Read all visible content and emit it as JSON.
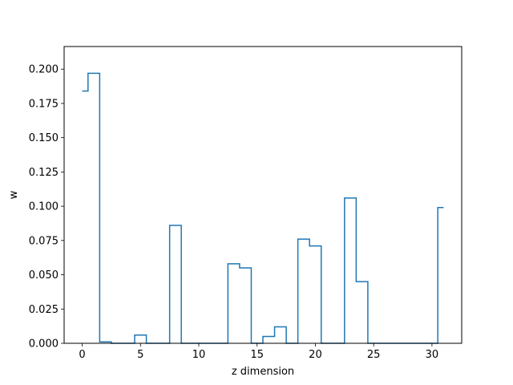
{
  "chart_data": {
    "type": "line",
    "style": "step-mid",
    "title": "",
    "xlabel": "z dimension",
    "ylabel": "w",
    "xlim": [
      -1.55,
      32.55
    ],
    "ylim": [
      0,
      0.2165
    ],
    "xticks": [
      0,
      5,
      10,
      15,
      20,
      25,
      30
    ],
    "xtick_labels": [
      "0",
      "5",
      "10",
      "15",
      "20",
      "25",
      "30"
    ],
    "yticks": [
      0.0,
      0.025,
      0.05,
      0.075,
      0.1,
      0.125,
      0.15,
      0.175,
      0.2
    ],
    "ytick_labels": [
      "0.000",
      "0.025",
      "0.050",
      "0.075",
      "0.100",
      "0.125",
      "0.150",
      "0.175",
      "0.200"
    ],
    "grid": false,
    "line_color": "#1f77b4",
    "x": [
      0,
      1,
      2,
      3,
      4,
      5,
      6,
      7,
      8,
      9,
      10,
      11,
      12,
      13,
      14,
      15,
      16,
      17,
      18,
      19,
      20,
      21,
      22,
      23,
      24,
      25,
      26,
      27,
      28,
      29,
      30,
      31
    ],
    "y": [
      0.184,
      0.197,
      0.001,
      0.0,
      0.0,
      0.006,
      0.0,
      0.0,
      0.086,
      0.0,
      0.0,
      0.0,
      0.0,
      0.058,
      0.055,
      0.0,
      0.005,
      0.012,
      0.0,
      0.076,
      0.071,
      0.0,
      0.0,
      0.106,
      0.045,
      0.0,
      0.0,
      0.0,
      0.0,
      0.0,
      0.0,
      0.099
    ]
  }
}
